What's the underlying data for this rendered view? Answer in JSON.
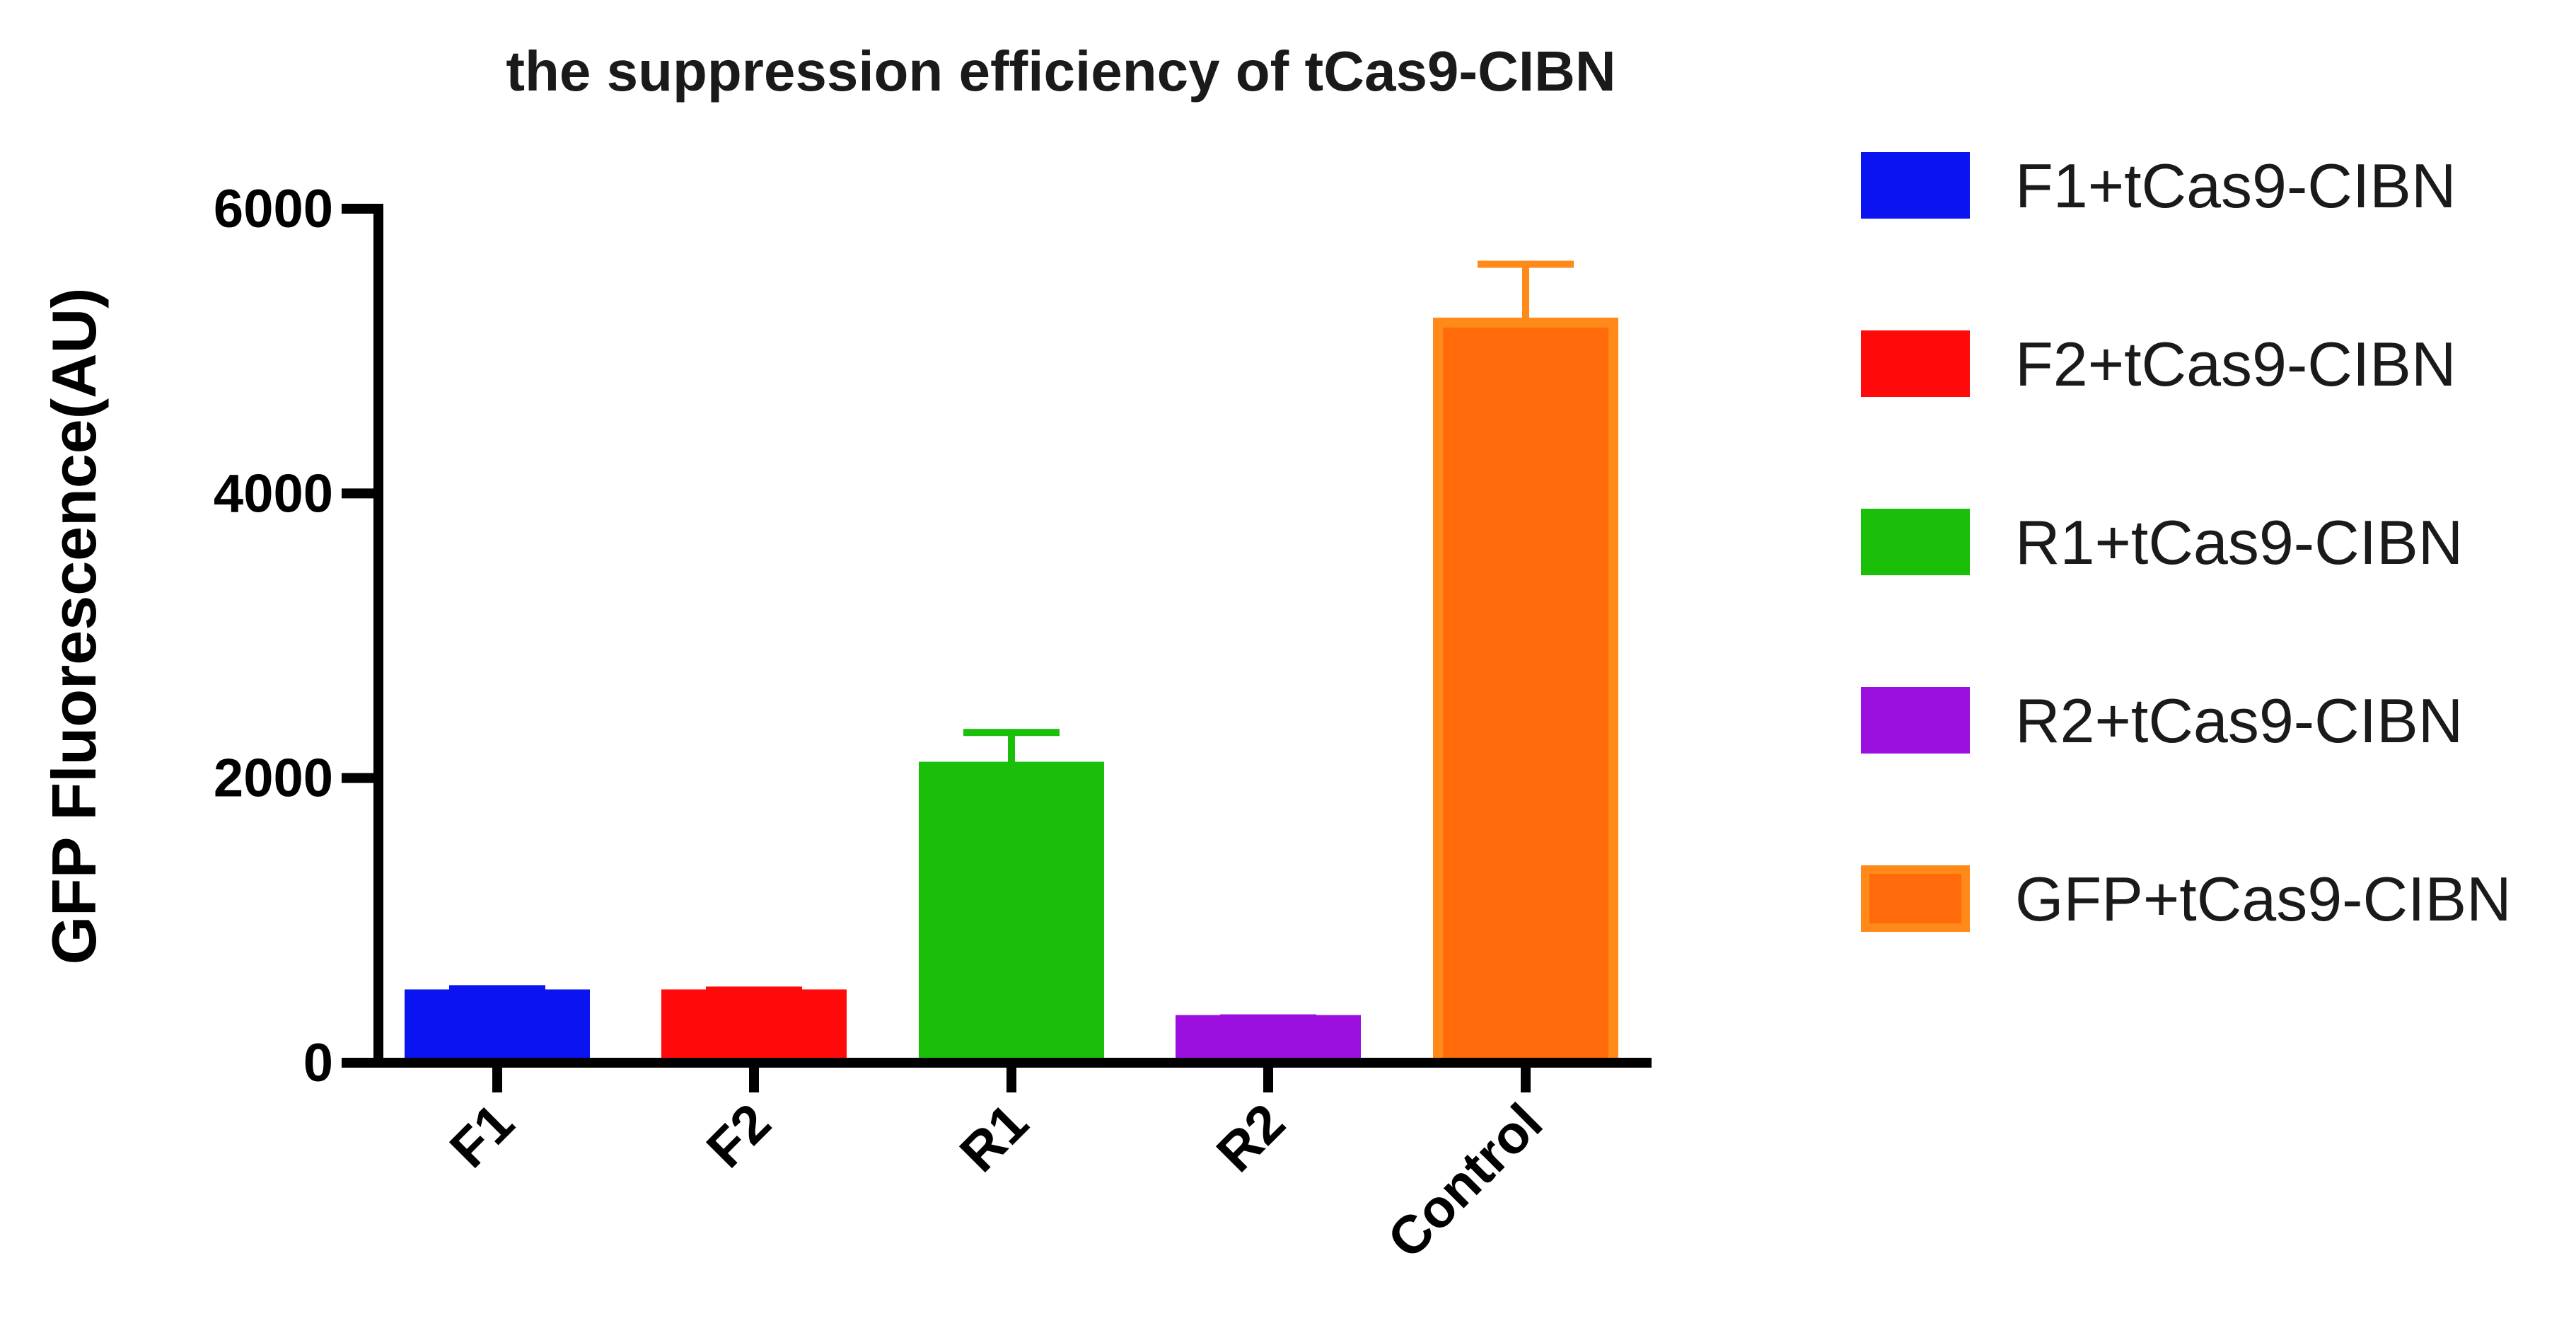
{
  "chart_data": {
    "type": "bar",
    "title": "the suppression efficiency of tCas9-CIBN",
    "xlabel": "",
    "ylabel": "GFP Fluorescence(AU)",
    "ylim": [
      0,
      6000
    ],
    "yticks": [
      0,
      2000,
      4000,
      6000
    ],
    "categories": [
      "F1",
      "F2",
      "R1",
      "R2",
      "Control"
    ],
    "values": [
      480,
      480,
      2080,
      300,
      5200
    ],
    "error": [
      40,
      30,
      240,
      15,
      410
    ],
    "colors": [
      "#0a14f0",
      "#ff0a0a",
      "#1abf0a",
      "#9b10de",
      "#ff6a0a"
    ],
    "edge_colors": [
      "#0a14f0",
      "#ff0a0a",
      "#1abf0a",
      "#9b10de",
      "#ff8a1a"
    ],
    "grid": false,
    "legend": {
      "placement": "right",
      "entries": [
        "F1+tCas9-CIBN",
        "F2+tCas9-CIBN",
        "R1+tCas9-CIBN",
        "R2+tCas9-CIBN",
        "GFP+tCas9-CIBN"
      ]
    }
  }
}
